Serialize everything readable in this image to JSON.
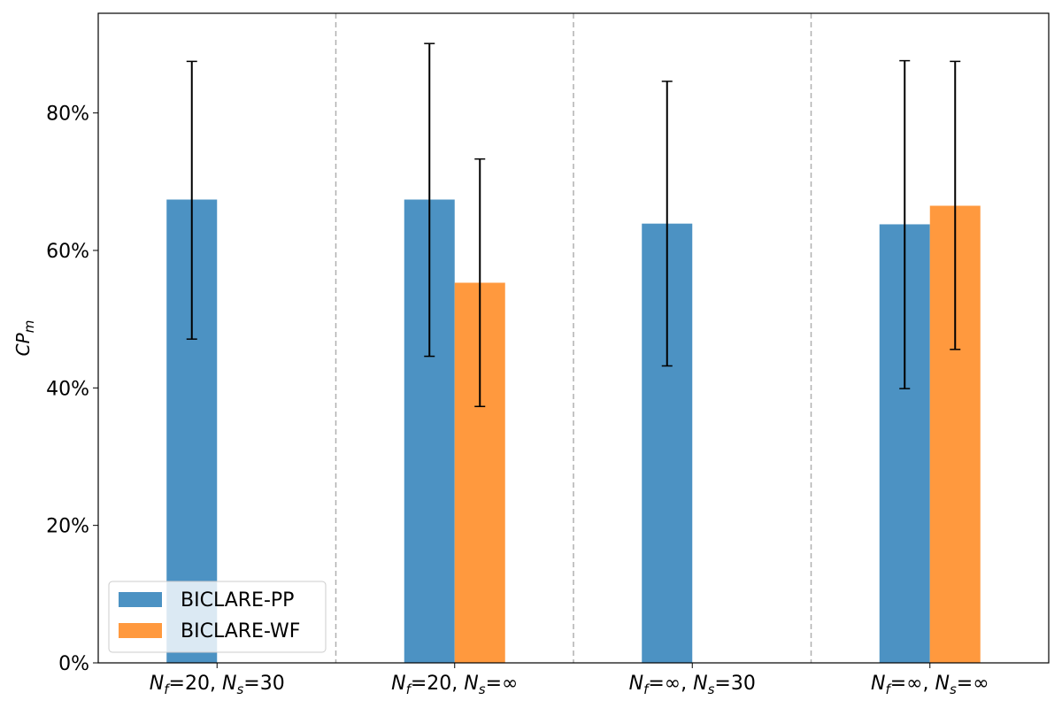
{
  "chart_data": {
    "type": "bar",
    "ylabel": "CP",
    "ylabel_sub": "m",
    "ylim": [
      0,
      94.5
    ],
    "yticks": [
      0,
      20,
      40,
      60,
      80
    ],
    "ytick_labels": [
      "0%",
      "20%",
      "40%",
      "60%",
      "80%"
    ],
    "categories": [
      {
        "N": "N",
        "fsub": "f",
        "fval": "=20, ",
        "N2": "N",
        "ssub": "s",
        "sval": "=30"
      },
      {
        "N": "N",
        "fsub": "f",
        "fval": "=20, ",
        "N2": "N",
        "ssub": "s",
        "sval": "=∞"
      },
      {
        "N": "N",
        "fsub": "f",
        "fval": "=∞, ",
        "N2": "N",
        "ssub": "s",
        "sval": "=30"
      },
      {
        "N": "N",
        "fsub": "f",
        "fval": "=∞, ",
        "N2": "N",
        "ssub": "s",
        "sval": "=∞"
      }
    ],
    "series": [
      {
        "name": "BICLARE-PP",
        "color": "#4c92c3",
        "values": [
          67.4,
          67.4,
          63.9,
          63.8
        ],
        "err_low": [
          47.1,
          44.6,
          43.2,
          39.9
        ],
        "err_high": [
          87.5,
          90.1,
          84.6,
          87.6
        ]
      },
      {
        "name": "BICLARE-WF",
        "color": "#ff993e",
        "values": [
          null,
          55.3,
          null,
          66.5
        ],
        "err_low": [
          null,
          37.3,
          null,
          45.6
        ],
        "err_high": [
          null,
          73.3,
          null,
          87.5
        ]
      }
    ],
    "grid": "vertical dashed separators between groups",
    "legend_position": "lower-left"
  }
}
